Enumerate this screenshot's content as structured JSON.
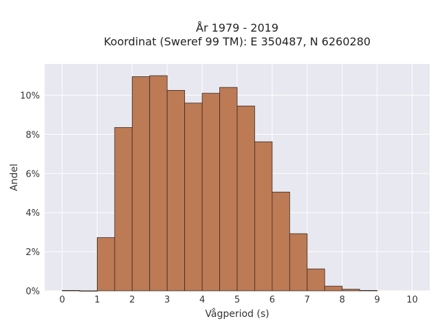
{
  "chart_data": {
    "type": "bar",
    "title": "År 1979 - 2019",
    "subtitle": "Koordinat (Sweref 99 TM): E 350487, N 6260280",
    "xlabel": "Vågperiod (s)",
    "ylabel": "Andel",
    "bin_width": 0.5,
    "bins": [
      {
        "x0": 0.0,
        "x1": 0.5,
        "value": 0.02
      },
      {
        "x0": 0.5,
        "x1": 1.0,
        "value": 0.0
      },
      {
        "x0": 1.0,
        "x1": 1.5,
        "value": 2.72
      },
      {
        "x0": 1.5,
        "x1": 2.0,
        "value": 8.35
      },
      {
        "x0": 2.0,
        "x1": 2.5,
        "value": 10.95
      },
      {
        "x0": 2.5,
        "x1": 3.0,
        "value": 11.0
      },
      {
        "x0": 3.0,
        "x1": 3.5,
        "value": 10.25
      },
      {
        "x0": 3.5,
        "x1": 4.0,
        "value": 9.6
      },
      {
        "x0": 4.0,
        "x1": 4.5,
        "value": 10.1
      },
      {
        "x0": 4.5,
        "x1": 5.0,
        "value": 10.4
      },
      {
        "x0": 5.0,
        "x1": 5.5,
        "value": 9.45
      },
      {
        "x0": 5.5,
        "x1": 6.0,
        "value": 7.62
      },
      {
        "x0": 6.0,
        "x1": 6.5,
        "value": 5.05
      },
      {
        "x0": 6.5,
        "x1": 7.0,
        "value": 2.92
      },
      {
        "x0": 7.0,
        "x1": 7.5,
        "value": 1.12
      },
      {
        "x0": 7.5,
        "x1": 8.0,
        "value": 0.24
      },
      {
        "x0": 8.0,
        "x1": 8.5,
        "value": 0.08
      },
      {
        "x0": 8.5,
        "x1": 9.0,
        "value": 0.02
      }
    ],
    "x_ticks": [
      0,
      1,
      2,
      3,
      4,
      5,
      6,
      7,
      8,
      9,
      10
    ],
    "y_ticks": [
      0,
      2,
      4,
      6,
      8,
      10
    ],
    "y_tick_suffix": "%",
    "xlim": [
      -0.5,
      10.5
    ],
    "ylim": [
      0,
      11.6
    ],
    "grid": true,
    "colors": {
      "bar_fill": "#bc7a55",
      "bar_stroke": "#3a2a20",
      "plot_bg": "#e8e8f0",
      "grid": "#ffffff"
    }
  }
}
